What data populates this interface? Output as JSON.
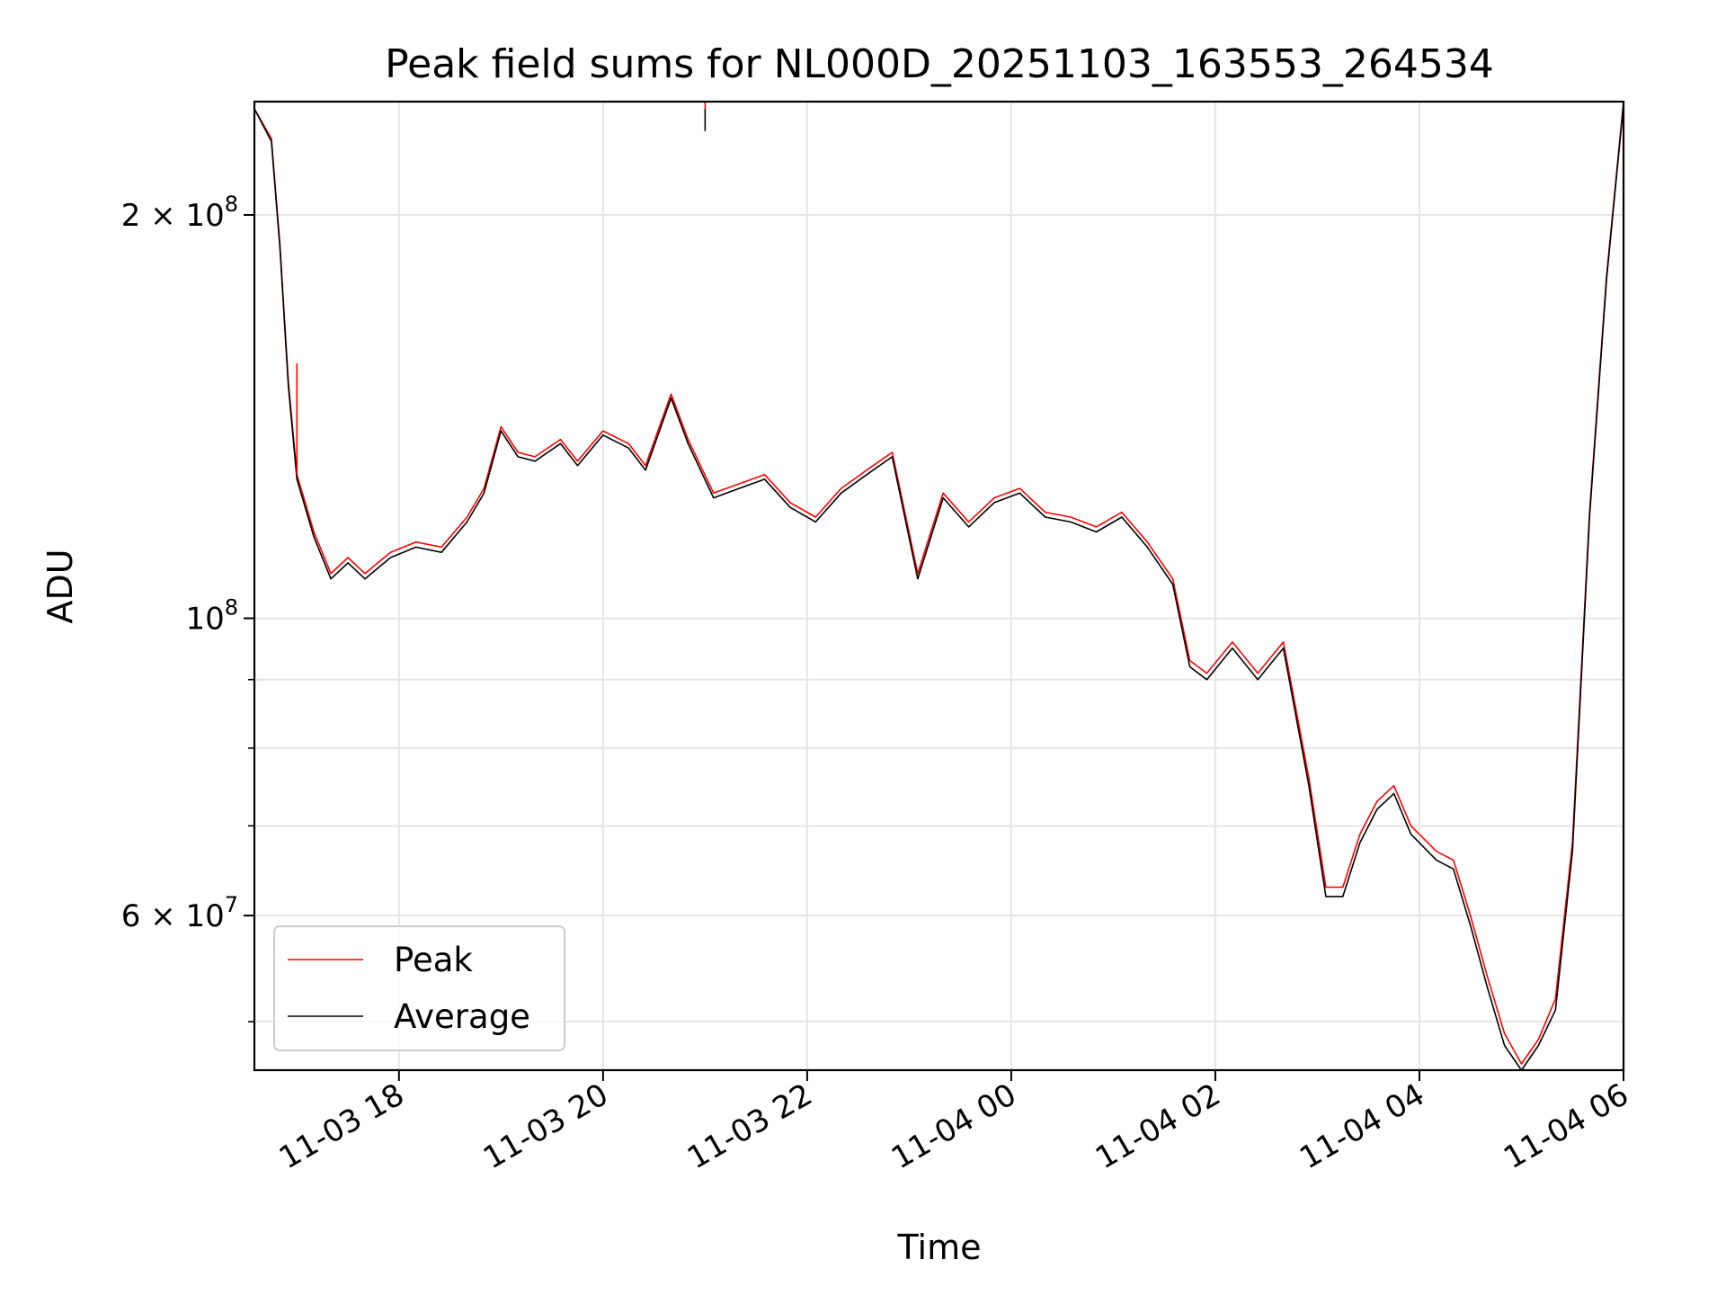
{
  "chart_data": {
    "type": "line",
    "title": "Peak field sums for NL000D_20251103_163553_264534",
    "xlabel": "Time",
    "ylabel": "ADU",
    "yscale": "log",
    "ylim": [
      46000000,
      243000000
    ],
    "xlim": [
      "11-03 16:35",
      "11-04 06:00"
    ],
    "grid": true,
    "legend_position": "lower-left",
    "x_ticks": [
      "11-03 18",
      "11-03 20",
      "11-03 22",
      "11-04 00",
      "11-04 02",
      "11-04 04",
      "11-04 06"
    ],
    "y_tick_labels": {
      "major": [
        {
          "value": 200000000,
          "base": "2 × 10",
          "exp": "8"
        },
        {
          "value": 100000000,
          "base": "10",
          "exp": "8"
        },
        {
          "value": 60000000,
          "base": "6 × 10",
          "exp": "7"
        }
      ],
      "minor_values": [
        50000000,
        70000000,
        80000000,
        90000000
      ]
    },
    "x": [
      "11-03 16:35",
      "11-03 16:45",
      "11-03 16:50",
      "11-03 16:55",
      "11-03 17:00",
      "11-03 17:10",
      "11-03 17:20",
      "11-03 17:30",
      "11-03 17:40",
      "11-03 17:55",
      "11-03 18:10",
      "11-03 18:25",
      "11-03 18:40",
      "11-03 18:50",
      "11-03 19:00",
      "11-03 19:10",
      "11-03 19:20",
      "11-03 19:35",
      "11-03 19:45",
      "11-03 20:00",
      "11-03 20:15",
      "11-03 20:25",
      "11-03 20:40",
      "11-03 20:50",
      "11-03 21:05",
      "11-03 21:20",
      "11-03 21:35",
      "11-03 21:50",
      "11-03 22:05",
      "11-03 22:20",
      "11-03 22:35",
      "11-03 22:50",
      "11-03 23:05",
      "11-03 23:20",
      "11-03 23:35",
      "11-03 23:50",
      "11-04 00:05",
      "11-04 00:20",
      "11-04 00:35",
      "11-04 00:50",
      "11-04 01:05",
      "11-04 01:20",
      "11-04 01:35",
      "11-04 01:45",
      "11-04 01:55",
      "11-04 02:10",
      "11-04 02:25",
      "11-04 02:40",
      "11-04 02:55",
      "11-04 03:05",
      "11-04 03:15",
      "11-04 03:25",
      "11-04 03:35",
      "11-04 03:45",
      "11-04 03:55",
      "11-04 04:10",
      "11-04 04:20",
      "11-04 04:30",
      "11-04 04:40",
      "11-04 04:50",
      "11-04 05:00",
      "11-04 05:10",
      "11-04 05:20",
      "11-04 05:30",
      "11-04 05:40",
      "11-04 05:50",
      "11-04 06:00"
    ],
    "series": [
      {
        "name": "Peak",
        "color": "#ff0000",
        "values": [
          240000000,
          228000000,
          190000000,
          150000000,
          128000000,
          116000000,
          108000000,
          111000000,
          108000000,
          112000000,
          114000000,
          113000000,
          119000000,
          125000000,
          139000000,
          133000000,
          132000000,
          136000000,
          131000000,
          138000000,
          135000000,
          130000000,
          147000000,
          136000000,
          124000000,
          126000000,
          128000000,
          122000000,
          119000000,
          125000000,
          129000000,
          133000000,
          108000000,
          124000000,
          118000000,
          123000000,
          125000000,
          120000000,
          119000000,
          117000000,
          120000000,
          114000000,
          107000000,
          93000000,
          91000000,
          96000000,
          91000000,
          96000000,
          76000000,
          63000000,
          63000000,
          69000000,
          73000000,
          75000000,
          70000000,
          67000000,
          66000000,
          60000000,
          54000000,
          49000000,
          46500000,
          48500000,
          52000000,
          68000000,
          120000000,
          180000000,
          243000000
        ]
      },
      {
        "name": "Average",
        "color": "#000000",
        "values": [
          240000000,
          227000000,
          189000000,
          149000000,
          127000000,
          115000000,
          107000000,
          110000000,
          107000000,
          111000000,
          113000000,
          112000000,
          118000000,
          124000000,
          138000000,
          132000000,
          131000000,
          135000000,
          130000000,
          137000000,
          134000000,
          129000000,
          146000000,
          135000000,
          123000000,
          125000000,
          127000000,
          121000000,
          118000000,
          124000000,
          128000000,
          132000000,
          107000000,
          123000000,
          117000000,
          122000000,
          124000000,
          119000000,
          118000000,
          116000000,
          119000000,
          113000000,
          106000000,
          92000000,
          90000000,
          95000000,
          90000000,
          95000000,
          75000000,
          62000000,
          62000000,
          68000000,
          72000000,
          74000000,
          69000000,
          66000000,
          65000000,
          59000000,
          53000000,
          48000000,
          46000000,
          48000000,
          51000000,
          67000000,
          119000000,
          179000000,
          242000000
        ]
      }
    ],
    "annotations_spikes": [
      {
        "x": "11-03 17:00",
        "series": "Peak",
        "y": 155000000
      },
      {
        "x": "11-03 21:00",
        "series": "Peak",
        "y": 243000000
      },
      {
        "x": "11-03 21:00",
        "series": "Average",
        "y": 231000000
      }
    ]
  }
}
